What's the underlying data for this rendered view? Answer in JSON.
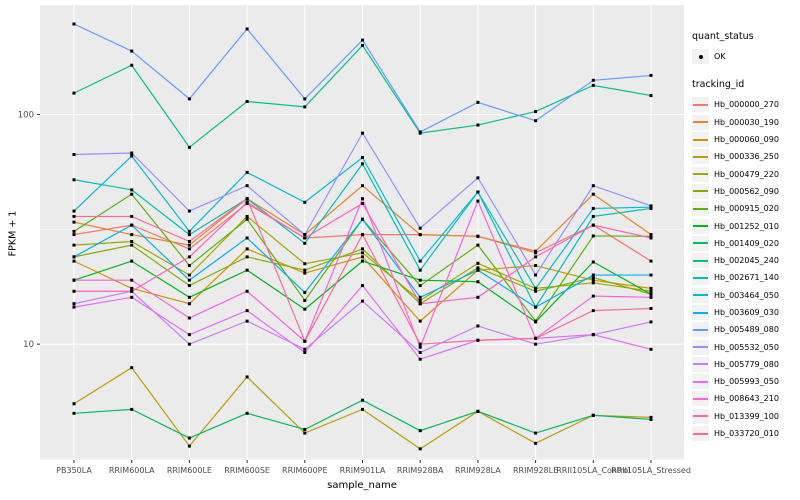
{
  "figure": {
    "background": "#FFFFFF",
    "panel_background": "#EBEBEB",
    "grid_color": "#FFFFFF",
    "tick_label_color": "#4D4D4D",
    "axis_title_color": "#000000",
    "point_color": "#000000"
  },
  "legend": {
    "quant_status": {
      "title": "quant_status",
      "items": [
        {
          "label": "OK",
          "marker": "black-point"
        }
      ]
    },
    "tracking": {
      "title": "tracking_id"
    }
  },
  "chart_data": {
    "type": "line",
    "title": "",
    "xlabel": "sample_name",
    "ylabel": "FPKM + 1",
    "y_scale": "log10",
    "y_ticks": [
      10,
      100
    ],
    "y_minor_gridlines": [
      3.162,
      31.62
    ],
    "ylim": [
      3.13,
      300
    ],
    "grid": true,
    "legend_position": "right",
    "categories": [
      "PB350LA",
      "RRIM600LA",
      "RRIM600LE",
      "RRIM600SE",
      "RRIM600PE",
      "RRIM901LA",
      "RRIM928BA",
      "RRIM928LA",
      "RRIM928LE",
      "RRII105LA_Control",
      "RRII105LA_Stressed"
    ],
    "series": [
      {
        "name": "Hb_000000_270",
        "color": "#F8766D",
        "values": [
          30,
          33,
          26,
          41,
          29,
          30,
          30,
          29.5,
          25,
          33,
          23
        ]
      },
      {
        "name": "Hb_000030_190",
        "color": "#E88526",
        "values": [
          34,
          30,
          27,
          43,
          30,
          49,
          30,
          29.5,
          25.4,
          45,
          30
        ]
      },
      {
        "name": "Hb_000060_090",
        "color": "#D39200",
        "values": [
          23,
          17.5,
          15,
          26,
          20.4,
          24,
          12.6,
          21,
          22,
          19,
          17.5
        ]
      },
      {
        "name": "Hb_000336_250",
        "color": "#BC9D00",
        "values": [
          5.5,
          7.9,
          3.6,
          7.2,
          4.1,
          5.2,
          3.5,
          5.1,
          3.7,
          4.9,
          4.8
        ]
      },
      {
        "name": "Hb_000479_220",
        "color": "#A2A600",
        "values": [
          27,
          28,
          20,
          36,
          22.4,
          25,
          15.5,
          22.5,
          17.5,
          18.5,
          17
        ]
      },
      {
        "name": "Hb_000562_090",
        "color": "#83AD00",
        "values": [
          24,
          27,
          18,
          24,
          21,
          26,
          15,
          21.5,
          17,
          19.5,
          16.5
        ]
      },
      {
        "name": "Hb_000915_020",
        "color": "#5BB300",
        "values": [
          31,
          45,
          22,
          35,
          15.5,
          35,
          18,
          27,
          12.6,
          29.6,
          29.5
        ]
      },
      {
        "name": "Hb_001252_010",
        "color": "#00B81B",
        "values": [
          19,
          23,
          16,
          21,
          14.2,
          23,
          19,
          18.7,
          12.5,
          22.8,
          16.5
        ]
      },
      {
        "name": "Hb_001409_020",
        "color": "#00BC61",
        "values": [
          5.0,
          5.2,
          3.9,
          5.0,
          4.25,
          5.7,
          4.2,
          5.1,
          4.1,
          4.9,
          4.7
        ]
      },
      {
        "name": "Hb_002045_240",
        "color": "#00C08E",
        "values": [
          124,
          164,
          72,
          114,
          108,
          200,
          83,
          90,
          103,
          134,
          121
        ]
      },
      {
        "name": "Hb_002671_140",
        "color": "#00C0B4",
        "values": [
          52,
          47,
          30,
          43,
          27.5,
          61,
          21,
          46,
          14.5,
          36,
          39
        ]
      },
      {
        "name": "Hb_003464_050",
        "color": "#00BCD8",
        "values": [
          38,
          66,
          31,
          56,
          41.5,
          65,
          23,
          46,
          17.5,
          39,
          39.5
        ]
      },
      {
        "name": "Hb_003609_030",
        "color": "#00B2F3",
        "values": [
          24,
          33,
          19,
          29,
          16.8,
          35,
          16,
          21,
          14.5,
          20,
          20
        ]
      },
      {
        "name": "Hb_005489_080",
        "color": "#619CFF",
        "values": [
          248,
          189,
          117,
          236,
          117,
          211,
          84,
          113,
          94,
          141,
          148
        ]
      },
      {
        "name": "Hb_005532_050",
        "color": "#9590FF",
        "values": [
          67,
          68,
          38,
          49,
          30,
          83,
          32,
          53,
          20,
          49,
          40
        ]
      },
      {
        "name": "Hb_005779_080",
        "color": "#C77CFF",
        "values": [
          15,
          17,
          10,
          12.6,
          9.5,
          15.4,
          9.2,
          12,
          10,
          11,
          12.5
        ]
      },
      {
        "name": "Hb_005993_050",
        "color": "#E56DF5",
        "values": [
          14.5,
          16,
          11,
          14,
          9.2,
          18,
          8.6,
          10.4,
          10.6,
          11,
          9.5
        ]
      },
      {
        "name": "Hb_008643_210",
        "color": "#F863DF",
        "values": [
          19,
          19,
          13,
          17,
          10.3,
          43,
          9.7,
          42,
          10.6,
          16.2,
          16
        ]
      },
      {
        "name": "Hb_013399_100",
        "color": "#FF61C0",
        "values": [
          17,
          17,
          24,
          41.5,
          29,
          41,
          15,
          16,
          24,
          33,
          29
        ]
      },
      {
        "name": "Hb_033720_010",
        "color": "#FF689B",
        "values": [
          36,
          36,
          28,
          43,
          10.3,
          30,
          10,
          10.4,
          10.6,
          14,
          14.3
        ]
      }
    ]
  }
}
